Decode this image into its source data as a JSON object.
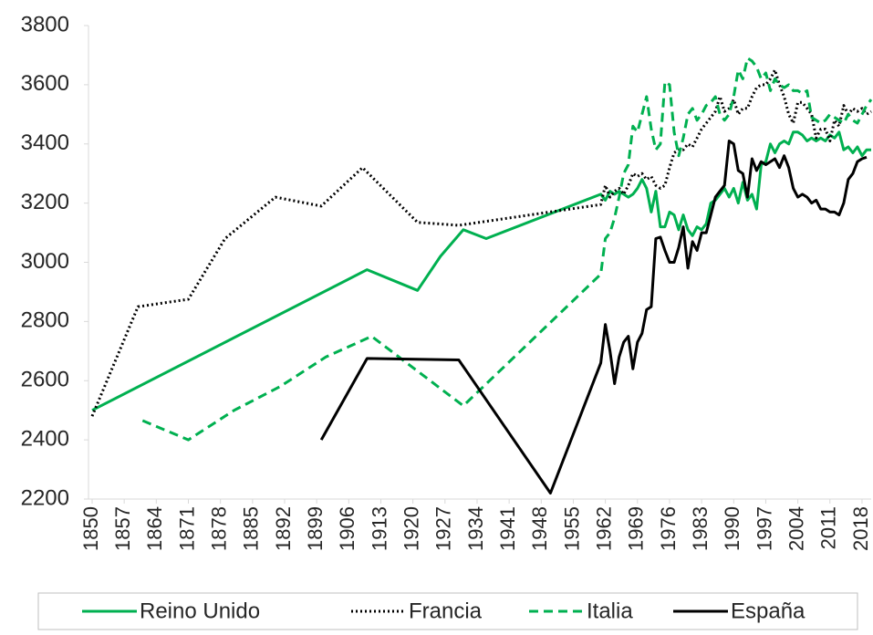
{
  "chart_data": {
    "type": "line",
    "xlim": [
      1850,
      2020
    ],
    "xticks": [
      1850,
      1857,
      1864,
      1871,
      1878,
      1885,
      1892,
      1899,
      1906,
      1913,
      1920,
      1927,
      1934,
      1941,
      1948,
      1955,
      1962,
      1969,
      1976,
      1983,
      1990,
      1997,
      2004,
      2011,
      2018
    ],
    "ylim": [
      2200,
      3800
    ],
    "yticks": [
      2200,
      2400,
      2600,
      2800,
      3000,
      3200,
      3400,
      3600,
      3800
    ],
    "legend": "bottom",
    "series": [
      {
        "name": "Reino Unido",
        "color": "#00b050",
        "dash": "solid",
        "x": [
          1850,
          1910,
          1921,
          1926,
          1931,
          1936,
          1961,
          1962,
          1963,
          1964,
          1965,
          1966,
          1967,
          1968,
          1969,
          1970,
          1971,
          1972,
          1973,
          1974,
          1975,
          1976,
          1977,
          1978,
          1979,
          1980,
          1981,
          1982,
          1983,
          1984,
          1985,
          1986,
          1987,
          1988,
          1989,
          1990,
          1991,
          1992,
          1993,
          1994,
          1995,
          1996,
          1997,
          1998,
          1999,
          2000,
          2001,
          2002,
          2003,
          2004,
          2005,
          2006,
          2007,
          2008,
          2009,
          2010,
          2011,
          2012,
          2013,
          2014,
          2015,
          2016,
          2017,
          2018,
          2019,
          2020
        ],
        "values": [
          2500,
          2975,
          2905,
          3020,
          3110,
          3080,
          3230,
          3210,
          3240,
          3230,
          3240,
          3230,
          3220,
          3230,
          3250,
          3280,
          3250,
          3170,
          3240,
          3120,
          3120,
          3170,
          3160,
          3110,
          3160,
          3110,
          3090,
          3120,
          3110,
          3130,
          3200,
          3210,
          3230,
          3250,
          3220,
          3250,
          3200,
          3270,
          3210,
          3230,
          3180,
          3330,
          3340,
          3400,
          3370,
          3400,
          3410,
          3400,
          3440,
          3440,
          3430,
          3410,
          3420,
          3410,
          3420,
          3410,
          3430,
          3420,
          3440,
          3380,
          3390,
          3370,
          3390,
          3360,
          3380,
          3380
        ]
      },
      {
        "name": "Francia",
        "color": "#000000",
        "dash": "dotted",
        "x": [
          1850,
          1860,
          1871,
          1879,
          1890,
          1900,
          1909,
          1921,
          1930,
          1961,
          1962,
          1963,
          1964,
          1965,
          1966,
          1967,
          1968,
          1969,
          1970,
          1971,
          1972,
          1973,
          1974,
          1975,
          1976,
          1977,
          1978,
          1979,
          1980,
          1981,
          1982,
          1983,
          1984,
          1985,
          1986,
          1987,
          1988,
          1989,
          1990,
          1991,
          1992,
          1993,
          1994,
          1995,
          1996,
          1997,
          1998,
          1999,
          2000,
          2001,
          2002,
          2003,
          2004,
          2005,
          2006,
          2007,
          2008,
          2009,
          2010,
          2011,
          2012,
          2013,
          2014,
          2015,
          2016,
          2017,
          2018,
          2019,
          2020
        ],
        "values": [
          2480,
          2850,
          2875,
          3080,
          3220,
          3190,
          3320,
          3135,
          3125,
          3195,
          3260,
          3220,
          3240,
          3250,
          3230,
          3260,
          3300,
          3290,
          3300,
          3280,
          3290,
          3260,
          3250,
          3260,
          3320,
          3370,
          3380,
          3380,
          3400,
          3390,
          3420,
          3450,
          3470,
          3490,
          3510,
          3560,
          3510,
          3520,
          3550,
          3500,
          3520,
          3520,
          3560,
          3590,
          3600,
          3600,
          3620,
          3650,
          3600,
          3560,
          3500,
          3470,
          3540,
          3540,
          3520,
          3500,
          3420,
          3450,
          3450,
          3410,
          3480,
          3460,
          3530,
          3500,
          3520,
          3510,
          3520,
          3500,
          3510
        ]
      },
      {
        "name": "Italia",
        "color": "#00b050",
        "dash": "dashed",
        "x": [
          1861,
          1871,
          1881,
          1891,
          1901,
          1911,
          1931,
          1961,
          1962,
          1963,
          1964,
          1965,
          1966,
          1967,
          1968,
          1969,
          1970,
          1971,
          1972,
          1973,
          1974,
          1975,
          1976,
          1977,
          1978,
          1979,
          1980,
          1981,
          1982,
          1983,
          1984,
          1985,
          1986,
          1987,
          1988,
          1989,
          1990,
          1991,
          1992,
          1993,
          1994,
          1995,
          1996,
          1997,
          1998,
          1999,
          2000,
          2001,
          2002,
          2003,
          2004,
          2005,
          2006,
          2007,
          2008,
          2009,
          2010,
          2011,
          2012,
          2013,
          2014,
          2015,
          2016,
          2017,
          2018,
          2019,
          2020
        ],
        "values": [
          2465,
          2400,
          2500,
          2580,
          2680,
          2750,
          2515,
          2960,
          3080,
          3100,
          3150,
          3220,
          3300,
          3330,
          3460,
          3440,
          3500,
          3560,
          3450,
          3380,
          3400,
          3610,
          3600,
          3440,
          3360,
          3420,
          3500,
          3520,
          3480,
          3500,
          3530,
          3540,
          3560,
          3500,
          3480,
          3500,
          3560,
          3650,
          3620,
          3690,
          3680,
          3660,
          3620,
          3640,
          3580,
          3620,
          3600,
          3590,
          3600,
          3580,
          3580,
          3570,
          3580,
          3490,
          3480,
          3470,
          3480,
          3500,
          3490,
          3480,
          3470,
          3500,
          3480,
          3470,
          3500,
          3530,
          3550
        ]
      },
      {
        "name": "España",
        "color": "#000000",
        "dash": "solid",
        "x": [
          1900,
          1910,
          1930,
          1950,
          1961,
          1962,
          1963,
          1964,
          1965,
          1966,
          1967,
          1968,
          1969,
          1970,
          1971,
          1972,
          1973,
          1974,
          1975,
          1976,
          1977,
          1978,
          1979,
          1980,
          1981,
          1982,
          1983,
          1984,
          1985,
          1986,
          1987,
          1988,
          1989,
          1990,
          1991,
          1992,
          1993,
          1994,
          1995,
          1996,
          1997,
          1998,
          1999,
          2000,
          2001,
          2002,
          2003,
          2004,
          2005,
          2006,
          2007,
          2008,
          2009,
          2010,
          2011,
          2012,
          2013,
          2014,
          2015,
          2016,
          2017,
          2018,
          2019
        ],
        "values": [
          2400,
          2675,
          2670,
          2220,
          2660,
          2790,
          2700,
          2590,
          2680,
          2730,
          2750,
          2640,
          2730,
          2760,
          2840,
          2850,
          3080,
          3085,
          3040,
          3000,
          3000,
          3050,
          3120,
          2980,
          3070,
          3040,
          3100,
          3100,
          3160,
          3220,
          3240,
          3260,
          3410,
          3400,
          3310,
          3300,
          3220,
          3350,
          3310,
          3340,
          3330,
          3340,
          3350,
          3320,
          3360,
          3320,
          3250,
          3220,
          3230,
          3220,
          3200,
          3210,
          3180,
          3180,
          3170,
          3170,
          3160,
          3200,
          3280,
          3300,
          3340,
          3350,
          3355
        ]
      }
    ]
  }
}
